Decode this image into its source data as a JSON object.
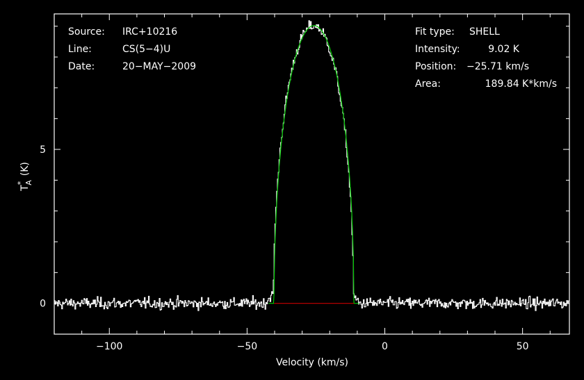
{
  "info_left": {
    "source_label": "Source:",
    "source_value": "IRC+10216",
    "line_label": "Line:",
    "line_value": "CS(5−4)U",
    "date_label": "Date:",
    "date_value": "20−MAY−2009"
  },
  "info_right": {
    "fit_label": "Fit type:",
    "fit_value": "SHELL",
    "intensity_label": "Intensity:",
    "intensity_value": "9.02 K",
    "position_label": "Position:",
    "position_value": "−25.71 km/s",
    "area_label": "Area:",
    "area_value": "189.84 K*km/s"
  },
  "colors": {
    "background": "#000000",
    "axes": "#ffffff",
    "spectrum": "#ffffff",
    "fit": "#00c800",
    "baseline": "#c80000"
  },
  "chart_data": {
    "type": "line",
    "xlabel": "Velocity (km/s)",
    "ylabel_main": "T",
    "ylabel_sub": "A",
    "ylabel_sup": "*",
    "ylabel_unit": "(K)",
    "xlim": [
      -120,
      67
    ],
    "ylim": [
      -1.0,
      9.4
    ],
    "x_ticks": [
      -100,
      -50,
      0,
      50
    ],
    "x_tick_labels": [
      "−100",
      "−50",
      "0",
      "50"
    ],
    "y_ticks": [
      0,
      5
    ],
    "y_tick_labels": [
      "0",
      "5"
    ],
    "series": [
      {
        "role": "observed-spectrum",
        "x_start": -120,
        "x_end": 67,
        "step": 0.3,
        "baseline_noise_rms": 0.13,
        "line_center": -25.7,
        "line_half_width": 14.5,
        "peak": 9.02
      },
      {
        "role": "shell-fit",
        "center": -25.71,
        "half_width": 14.5,
        "peak": 9.02,
        "edge_low": -40.2,
        "edge_high": -11.2
      },
      {
        "role": "baseline",
        "x": [
          -40.2,
          -11.2
        ],
        "y": [
          0,
          0
        ]
      }
    ]
  }
}
